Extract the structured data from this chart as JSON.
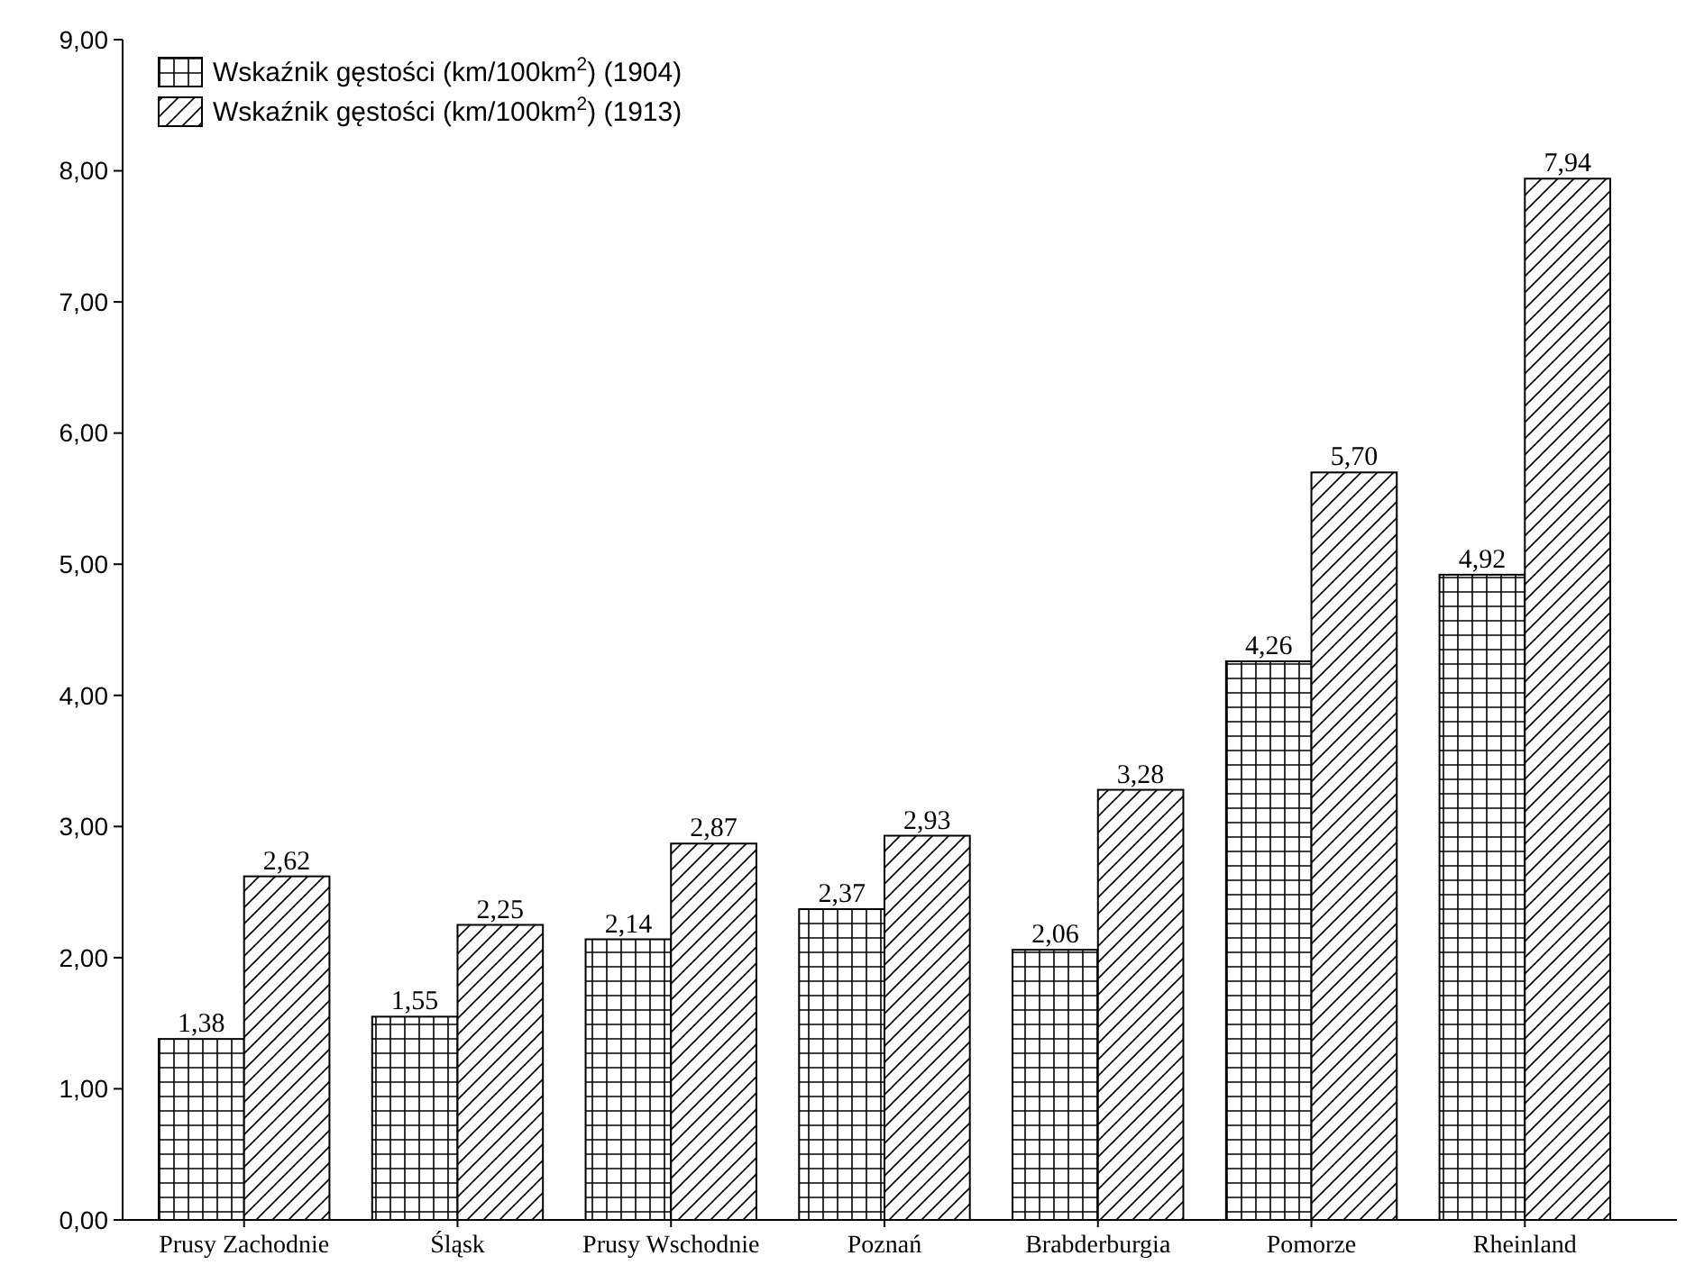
{
  "chart_data": {
    "type": "bar",
    "categories": [
      "Prusy Zachodnie",
      "Śląsk",
      "Prusy Wschodnie",
      "Poznań",
      "Brabderburgia",
      "Pomorze",
      "Rheinland"
    ],
    "series": [
      {
        "name": "Wskaźnik gęstości (km/100km$^{2}$) (1904)",
        "color": "#000000",
        "values": [
          1.38,
          1.55,
          2.14,
          2.37,
          2.06,
          4.26,
          4.92
        ],
        "value_labels": [
          "1,38",
          "1,55",
          "2,14",
          "2,37",
          "2,06",
          "4,26",
          "4,92"
        ]
      },
      {
        "name": "Wskaźnik gęstości (km/100km$^{2}$) (1913)",
        "color": "#000000",
        "values": [
          2.62,
          2.25,
          2.87,
          2.93,
          3.28,
          5.7,
          7.94
        ],
        "value_labels": [
          "2,62",
          "2,25",
          "2,87",
          "2,93",
          "3,28",
          "5,70",
          "7,94"
        ]
      }
    ],
    "ylim": [
      0,
      9
    ],
    "yticks": [
      {
        "value": 0,
        "label": "0,00"
      },
      {
        "value": 1,
        "label": "1,00"
      },
      {
        "value": 2,
        "label": "2,00"
      },
      {
        "value": 3,
        "label": "3,00"
      },
      {
        "value": 4,
        "label": "4,00"
      },
      {
        "value": 5,
        "label": "5,00"
      },
      {
        "value": 6,
        "label": "6,00"
      },
      {
        "value": 7,
        "label": "7,00"
      },
      {
        "value": 8,
        "label": "8,00"
      },
      {
        "value": 9,
        "label": "9,00"
      }
    ],
    "grid": false,
    "legend": "top left"
  }
}
